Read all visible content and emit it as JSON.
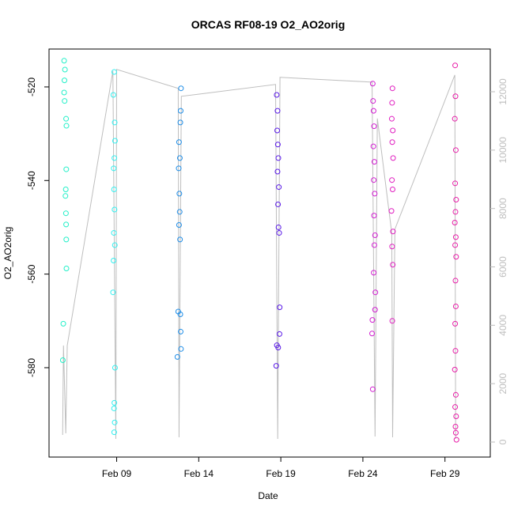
{
  "chart_data": {
    "type": "scatter",
    "title": "ORCAS RF08-19 O2_AO2orig",
    "xlabel": "Date",
    "ylabel": "O2_AO2orig",
    "xlim": [
      4.88,
      31.76
    ],
    "xticks": [
      {
        "value": 9,
        "label": "Feb 09"
      },
      {
        "value": 14,
        "label": "Feb 14"
      },
      {
        "value": 19,
        "label": "Feb 19"
      },
      {
        "value": 24,
        "label": "Feb 24"
      },
      {
        "value": 29,
        "label": "Feb 29"
      }
    ],
    "ylim": [
      -599.1,
      -511.9
    ],
    "yticks": [
      -520,
      -540,
      -560,
      -580
    ],
    "y2lim": [
      -515,
      13463
    ],
    "y2ticks": [
      0,
      2000,
      4000,
      6000,
      8000,
      10000,
      12000
    ],
    "y2color": "#bebebe",
    "series": [
      {
        "color": "#bebebe",
        "axis": "y2",
        "line": true,
        "x": [
          5.71,
          5.76,
          5.9,
          5.99,
          8.77,
          8.95,
          9.0,
          12.75,
          12.8,
          12.94,
          18.68,
          18.81,
          18.95,
          24.56,
          24.74,
          24.88,
          25.76,
          25.81,
          25.95,
          29.6,
          29.65
        ],
        "values": [
          244,
          3306,
          298,
          3306,
          12710,
          108,
          12764,
          12114,
          163,
          11843,
          12249,
          108,
          12493,
          12330,
          190,
          11084,
          7154,
          163,
          7290,
          12574,
          108
        ]
      },
      {
        "color": "#22f0c8",
        "x": [
          5.8,
          5.85,
          5.82,
          5.8,
          5.83,
          5.92,
          5.94,
          5.93,
          5.9,
          5.88,
          5.91,
          5.92,
          5.93,
          5.94,
          5.75,
          5.72
        ],
        "values": [
          -514.4,
          -516.3,
          -518.6,
          -521.2,
          -523.0,
          -526.8,
          -528.3,
          -537.6,
          -541.9,
          -543.3,
          -547.0,
          -549.4,
          -552.6,
          -558.8,
          -570.6,
          -578.4
        ]
      },
      {
        "color": "#33f0f0",
        "x": [
          8.85,
          8.8,
          8.88,
          8.9,
          8.86,
          8.82,
          8.84,
          8.87,
          8.83,
          8.89,
          8.81,
          8.78,
          8.9,
          8.86,
          8.84,
          8.88,
          8.85
        ],
        "values": [
          -516.8,
          -521.7,
          -527.6,
          -531.5,
          -535.2,
          -537.4,
          -541.9,
          -546.2,
          -551.2,
          -553.8,
          -557.1,
          -563.9,
          -580.0,
          -587.5,
          -588.7,
          -591.7,
          -593.8
        ]
      },
      {
        "color": "#1f8ee8",
        "x": [
          12.92,
          12.9,
          12.88,
          12.8,
          12.85,
          12.78,
          12.82,
          12.84,
          12.8,
          12.86,
          12.75,
          12.88,
          12.9,
          12.92,
          12.7
        ],
        "values": [
          -520.3,
          -525.1,
          -527.6,
          -531.8,
          -535.2,
          -537.4,
          -542.8,
          -546.7,
          -549.5,
          -552.6,
          -568.0,
          -568.6,
          -572.3,
          -576.0,
          -577.7
        ]
      },
      {
        "color": "#5a1ae8",
        "x": [
          18.75,
          18.8,
          18.78,
          18.82,
          18.85,
          18.8,
          18.88,
          18.83,
          18.86,
          18.9,
          18.93,
          18.92,
          18.76,
          18.84,
          18.72
        ],
        "values": [
          -521.7,
          -525.1,
          -529.3,
          -532.3,
          -535.2,
          -538.1,
          -541.4,
          -545.1,
          -550.0,
          -551.2,
          -567.1,
          -572.8,
          -575.2,
          -575.7,
          -579.6
        ]
      },
      {
        "color": "#d21ed2",
        "x": [
          24.6,
          24.62,
          24.65,
          24.68,
          24.64,
          24.7,
          24.66,
          24.72,
          24.68,
          24.74,
          24.7,
          24.66,
          24.76,
          24.74,
          24.58,
          24.56,
          24.6
        ],
        "values": [
          -519.3,
          -523.0,
          -525.1,
          -528.4,
          -532.7,
          -536.0,
          -539.9,
          -542.8,
          -547.5,
          -551.7,
          -553.8,
          -559.7,
          -563.9,
          -567.6,
          -569.8,
          -572.7,
          -584.6
        ]
      },
      {
        "color": "#e01ec0",
        "x": [
          25.8,
          25.78,
          25.76,
          25.82,
          25.79,
          25.84,
          25.77,
          25.81,
          25.74,
          25.83,
          25.78,
          25.82,
          25.79
        ],
        "values": [
          -520.3,
          -523.4,
          -526.8,
          -529.3,
          -531.8,
          -535.2,
          -539.9,
          -541.9,
          -546.5,
          -550.9,
          -554.1,
          -558.0,
          -570.0
        ]
      },
      {
        "color": "#e81ea8",
        "x": [
          29.62,
          29.64,
          29.6,
          29.66,
          29.62,
          29.68,
          29.64,
          29.6,
          29.66,
          29.62,
          29.68,
          29.64,
          29.66,
          29.62,
          29.64,
          29.6,
          29.66,
          29.62,
          29.68,
          29.64,
          29.66,
          29.7
        ],
        "values": [
          -515.4,
          -522.0,
          -526.8,
          -533.5,
          -540.6,
          -544.1,
          -546.7,
          -549.0,
          -552.1,
          -553.8,
          -556.3,
          -561.4,
          -566.9,
          -570.6,
          -576.4,
          -580.4,
          -585.8,
          -588.4,
          -590.4,
          -592.6,
          -593.9,
          -595.4
        ]
      }
    ]
  }
}
